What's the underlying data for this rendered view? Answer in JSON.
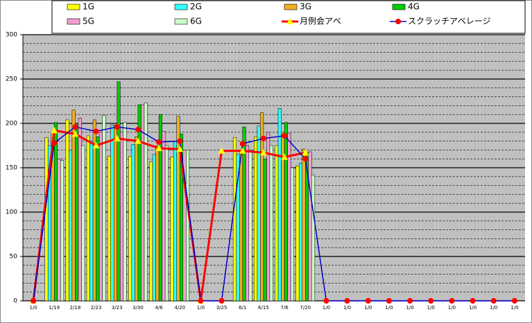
{
  "chart_data": {
    "type": "bar",
    "categories": [
      "1/0",
      "1/19",
      "2/18",
      "2/23",
      "3/23",
      "3/30",
      "4/6",
      "4/20",
      "1/0",
      "3/25",
      "6/1",
      "6/15",
      "7/6",
      "7/20",
      "1/0",
      "1/0",
      "1/0",
      "1/0",
      "1/0",
      "1/0",
      "1/0",
      "1/0",
      "1/0",
      "1/0"
    ],
    "series": [
      {
        "name": "1G",
        "type": "bar",
        "color": "#ffff00",
        "values": [
          0,
          184,
          204,
          186,
          163,
          163,
          157,
          162,
          0,
          0,
          184,
          185,
          175,
          152,
          0,
          0,
          0,
          0,
          0,
          0,
          0,
          0,
          0,
          0
        ]
      },
      {
        "name": "2G",
        "type": "bar",
        "color": "#33ffff",
        "values": [
          0,
          175,
          170,
          180,
          198,
          176,
          165,
          180,
          0,
          0,
          165,
          197,
          217,
          155,
          0,
          0,
          0,
          0,
          0,
          0,
          0,
          0,
          0,
          0
        ]
      },
      {
        "name": "3G",
        "type": "bar",
        "color": "#f0b020",
        "values": [
          0,
          190,
          215,
          204,
          198,
          185,
          175,
          208,
          0,
          0,
          170,
          212,
          190,
          171,
          0,
          0,
          0,
          0,
          0,
          0,
          0,
          0,
          0,
          0
        ]
      },
      {
        "name": "4G",
        "type": "bar",
        "color": "#00cc00",
        "values": [
          0,
          201,
          200,
          185,
          247,
          221,
          210,
          188,
          0,
          0,
          196,
          160,
          201,
          167,
          0,
          0,
          0,
          0,
          0,
          0,
          0,
          0,
          0,
          0
        ]
      },
      {
        "name": "5G",
        "type": "bar",
        "color": "#f0a0d0",
        "values": [
          0,
          160,
          206,
          190,
          190,
          221,
          191,
          170,
          0,
          0,
          175,
          190,
          189,
          168,
          0,
          0,
          0,
          0,
          0,
          0,
          0,
          0,
          0,
          0
        ]
      },
      {
        "name": "6G",
        "type": "bar",
        "color": "#ccffcc",
        "values": [
          0,
          158,
          175,
          209,
          201,
          223,
          175,
          170,
          0,
          0,
          170,
          175,
          150,
          142,
          0,
          0,
          0,
          0,
          0,
          0,
          0,
          0,
          0,
          0
        ]
      },
      {
        "name": "月例会アベ",
        "type": "line",
        "color": "#ff0000",
        "marker": "triangle",
        "marker_color": "#ffff00",
        "values": [
          0,
          192,
          188,
          175,
          183,
          180,
          172,
          171,
          0,
          169,
          169,
          167,
          162,
          167,
          null,
          null,
          null,
          null,
          null,
          null,
          null,
          null,
          null,
          null
        ]
      },
      {
        "name": "スクラッチアベレージ",
        "type": "line",
        "color": "#0000cc",
        "marker": "circle",
        "marker_color": "#ff0000",
        "values": [
          0,
          178,
          196,
          191,
          196,
          193,
          179,
          180,
          0,
          0,
          177,
          183,
          186,
          160,
          0,
          0,
          0,
          0,
          0,
          0,
          0,
          0,
          0,
          0
        ]
      }
    ],
    "ylim": [
      0,
      300
    ],
    "yticks": [
      0,
      50,
      100,
      150,
      200,
      250,
      300
    ],
    "minor_yticks": [
      10,
      20,
      30,
      40,
      60,
      70,
      80,
      90,
      110,
      120,
      130,
      140,
      160,
      170,
      180,
      190,
      210,
      220,
      230,
      240,
      260,
      270,
      280,
      290
    ],
    "grid": true
  }
}
